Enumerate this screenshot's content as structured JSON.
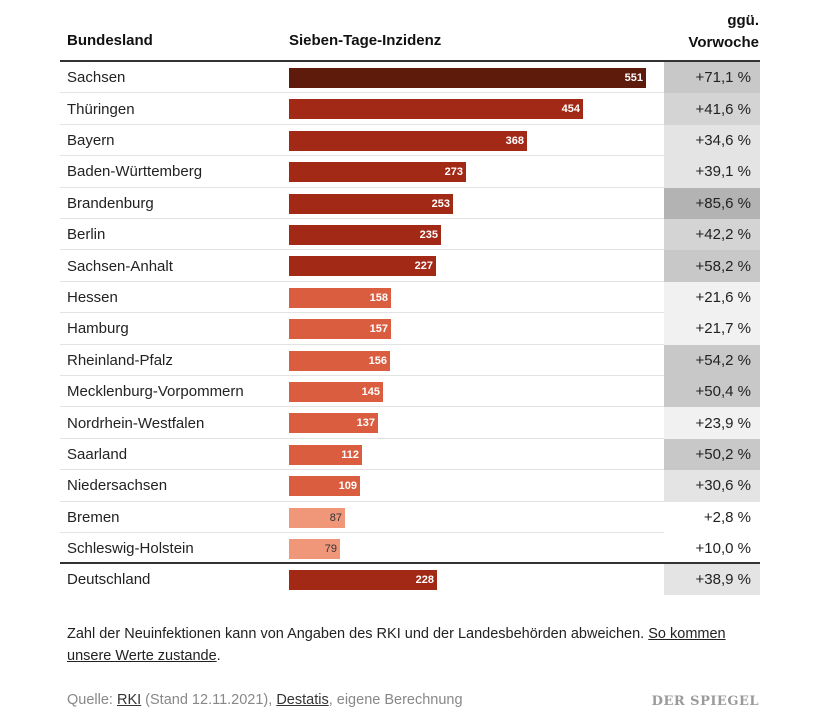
{
  "headers": {
    "state": "Bundesland",
    "incidence": "Sieben-Tage-Inzidenz",
    "change_line1": "ggü.",
    "change_line2": "Vorwoche"
  },
  "chart_data": {
    "type": "bar",
    "orientation": "horizontal",
    "title": "Sieben-Tage-Inzidenz",
    "xlim": [
      0,
      551
    ],
    "colors": {
      "darkest": "#5e1a0b",
      "high": "#a32917",
      "mid": "#d95d3e",
      "low": "#f0977a",
      "change_shades": [
        "#ffffff",
        "#f1f1f1",
        "#e4e4e4",
        "#d4d4d4",
        "#c8c8c8",
        "#b3b3b3"
      ]
    },
    "rows": [
      {
        "name": "Sachsen",
        "value": 551,
        "value_label": "551",
        "change": 71.1,
        "change_label": "+71,1 %"
      },
      {
        "name": "Thüringen",
        "value": 454,
        "value_label": "454",
        "change": 41.6,
        "change_label": "+41,6 %"
      },
      {
        "name": "Bayern",
        "value": 368,
        "value_label": "368",
        "change": 34.6,
        "change_label": "+34,6 %"
      },
      {
        "name": "Baden-Württemberg",
        "value": 273,
        "value_label": "273",
        "change": 39.1,
        "change_label": "+39,1 %"
      },
      {
        "name": "Brandenburg",
        "value": 253,
        "value_label": "253",
        "change": 85.6,
        "change_label": "+85,6 %"
      },
      {
        "name": "Berlin",
        "value": 235,
        "value_label": "235",
        "change": 42.2,
        "change_label": "+42,2 %"
      },
      {
        "name": "Sachsen-Anhalt",
        "value": 227,
        "value_label": "227",
        "change": 58.2,
        "change_label": "+58,2 %"
      },
      {
        "name": "Hessen",
        "value": 158,
        "value_label": "158",
        "change": 21.6,
        "change_label": "+21,6 %"
      },
      {
        "name": "Hamburg",
        "value": 157,
        "value_label": "157",
        "change": 21.7,
        "change_label": "+21,7 %"
      },
      {
        "name": "Rheinland-Pfalz",
        "value": 156,
        "value_label": "156",
        "change": 54.2,
        "change_label": "+54,2 %"
      },
      {
        "name": "Mecklenburg-Vorpommern",
        "value": 145,
        "value_label": "145",
        "change": 50.4,
        "change_label": "+50,4 %"
      },
      {
        "name": "Nordrhein-Westfalen",
        "value": 137,
        "value_label": "137",
        "change": 23.9,
        "change_label": "+23,9 %"
      },
      {
        "name": "Saarland",
        "value": 112,
        "value_label": "112",
        "change": 50.2,
        "change_label": "+50,2 %"
      },
      {
        "name": "Niedersachsen",
        "value": 109,
        "value_label": "109",
        "change": 30.6,
        "change_label": "+30,6 %"
      },
      {
        "name": "Bremen",
        "value": 87,
        "value_label": "87",
        "change": 2.8,
        "change_label": "+2,8 %"
      },
      {
        "name": "Schleswig-Holstein",
        "value": 79,
        "value_label": "79",
        "change": 10.0,
        "change_label": "+10,0 %"
      }
    ],
    "total": {
      "name": "Deutschland",
      "value": 228,
      "value_label": "228",
      "change": 38.9,
      "change_label": "+38,9 %"
    }
  },
  "footer": {
    "note_text": "Zahl der Neuinfektionen kann von Angaben des RKI und der Landesbehörden abweichen. ",
    "note_link": "So kommen unsere Werte zustande",
    "note_end": ".",
    "source_prefix": "Quelle: ",
    "source_rki": "RKI",
    "source_date": " (Stand 12.11.2021), ",
    "source_destatis": "Destatis",
    "source_suffix": ", eigene Berechnung",
    "logo": "DER SPIEGEL"
  }
}
